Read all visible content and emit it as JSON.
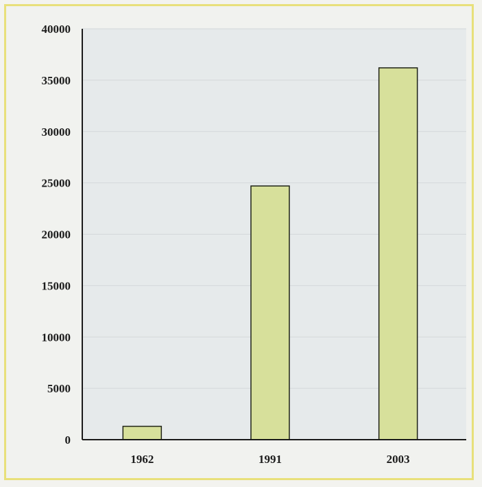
{
  "chart_data": {
    "type": "bar",
    "title": "",
    "xlabel": "",
    "ylabel": "",
    "categories": [
      "1962",
      "1991",
      "2003"
    ],
    "values": [
      1300,
      24700,
      36200
    ],
    "ylim": [
      0,
      40000
    ],
    "yticks": [
      0,
      5000,
      10000,
      15000,
      20000,
      25000,
      30000,
      35000,
      40000
    ],
    "grid": true,
    "legend": "none",
    "bar_color": "#d7e09b",
    "bar_border_color": "#1e2216"
  }
}
